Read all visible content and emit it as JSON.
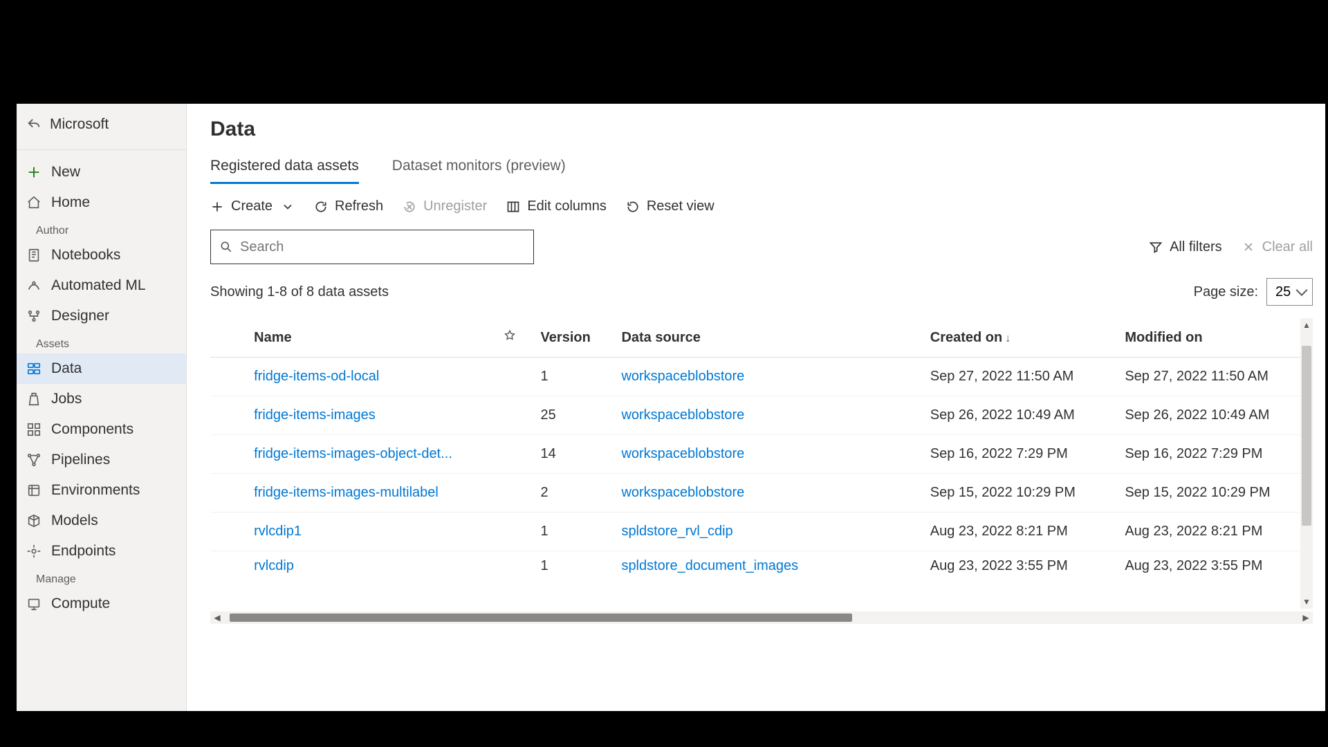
{
  "sidebar": {
    "workspace": "Microsoft",
    "top": [
      "New",
      "Home"
    ],
    "sections": [
      "Author",
      "Assets",
      "Manage"
    ],
    "author": [
      "Notebooks",
      "Automated ML",
      "Designer"
    ],
    "assets": [
      "Data",
      "Jobs",
      "Components",
      "Pipelines",
      "Environments",
      "Models",
      "Endpoints"
    ],
    "manage": [
      "Compute"
    ]
  },
  "header": {
    "title": "Data",
    "tabs": [
      "Registered data assets",
      "Dataset monitors (preview)"
    ]
  },
  "toolbar": {
    "create": "Create",
    "refresh": "Refresh",
    "unregister": "Unregister",
    "edit_columns": "Edit columns",
    "reset_view": "Reset view"
  },
  "filters": {
    "search_placeholder": "Search",
    "all_filters": "All filters",
    "clear_all": "Clear all"
  },
  "status": {
    "showing": "Showing 1-8 of 8 data assets",
    "page_size_label": "Page size:",
    "page_size_value": "25"
  },
  "table": {
    "columns": [
      "Name",
      "Version",
      "Data source",
      "Created on",
      "Modified on"
    ],
    "rows": [
      {
        "name": "fridge-items-od-local",
        "version": "1",
        "source": "workspaceblobstore",
        "created": "Sep 27, 2022 11:50 AM",
        "modified": "Sep 27, 2022 11:50 AM"
      },
      {
        "name": "fridge-items-images",
        "version": "25",
        "source": "workspaceblobstore",
        "created": "Sep 26, 2022 10:49 AM",
        "modified": "Sep 26, 2022 10:49 AM"
      },
      {
        "name": "fridge-items-images-object-det...",
        "version": "14",
        "source": "workspaceblobstore",
        "created": "Sep 16, 2022 7:29 PM",
        "modified": "Sep 16, 2022 7:29 PM"
      },
      {
        "name": "fridge-items-images-multilabel",
        "version": "2",
        "source": "workspaceblobstore",
        "created": "Sep 15, 2022 10:29 PM",
        "modified": "Sep 15, 2022 10:29 PM"
      },
      {
        "name": "rvlcdip1",
        "version": "1",
        "source": "spldstore_rvl_cdip",
        "created": "Aug 23, 2022 8:21 PM",
        "modified": "Aug 23, 2022 8:21 PM"
      },
      {
        "name": "rvlcdip",
        "version": "1",
        "source": "spldstore_document_images",
        "created": "Aug 23, 2022 3:55 PM",
        "modified": "Aug 23, 2022 3:55 PM",
        "clipped": true
      }
    ]
  },
  "colors": {
    "accent": "#0078d4",
    "sidebar_bg": "#f3f2f1",
    "text": "#323130",
    "muted": "#605e5c",
    "disabled": "#a19f9d"
  }
}
